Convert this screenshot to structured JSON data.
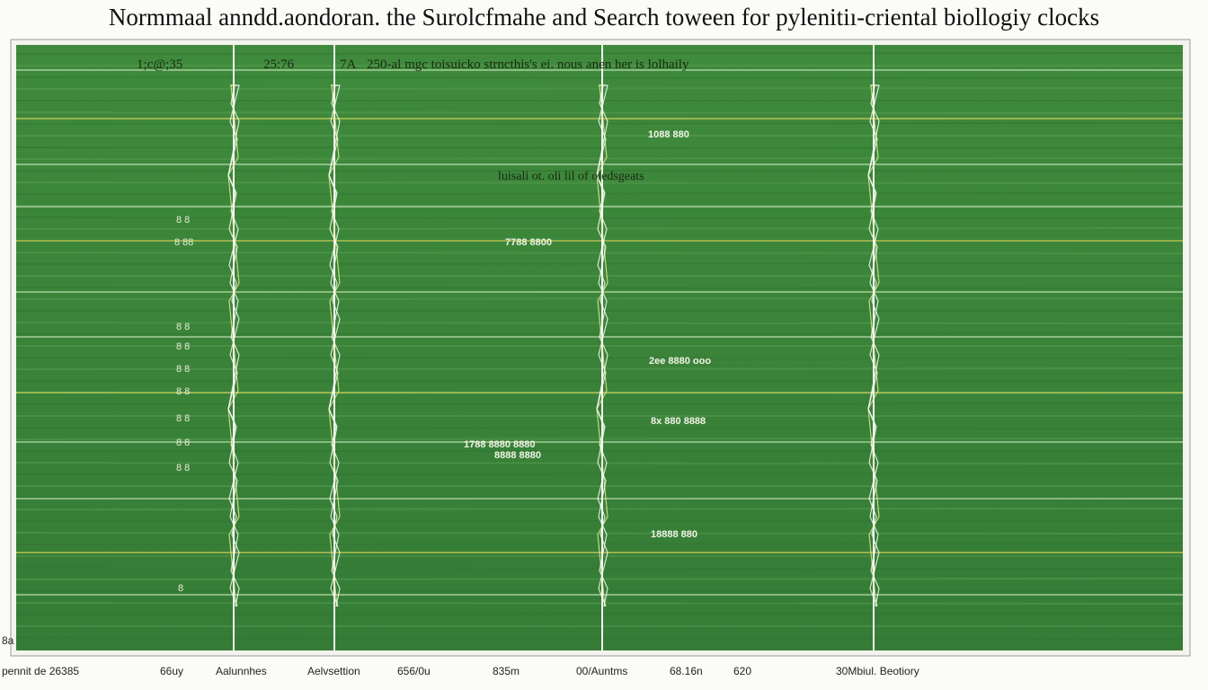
{
  "title": "Normmaal anndd.aondoran. the  Surolcfmahe  and  Search  toween for  pylenitiı-criental  biollogiy clocks",
  "top_labels": [
    "1;c@;35",
    "25:76",
    "7A",
    "250-al  mgc toisuicko strncthis's ei. nous anen  her is lolhaily"
  ],
  "inner_label": "luisali ot. oli lil  of oledsgeats",
  "small_labels": [
    "1088 880",
    "7788 8800",
    "2ee 8880  ooo",
    "8x 880 8888",
    "1788 8880 8880",
    "8888 8880",
    "18888 880"
  ],
  "left_labels": [
    "8 8",
    "8 88",
    "8 8",
    "8 8",
    "8 8",
    "8 8",
    "8 8",
    "8 8",
    "8 8",
    "8",
    "8a"
  ],
  "bottom_labels": [
    "pennit de  26385",
    "66uy",
    "Aalunnhes",
    "Aelvsettion",
    "656/0u",
    "835m",
    "00/Auntms",
    "68.16n",
    "620",
    "30Mbiul. Beotiory"
  ]
}
